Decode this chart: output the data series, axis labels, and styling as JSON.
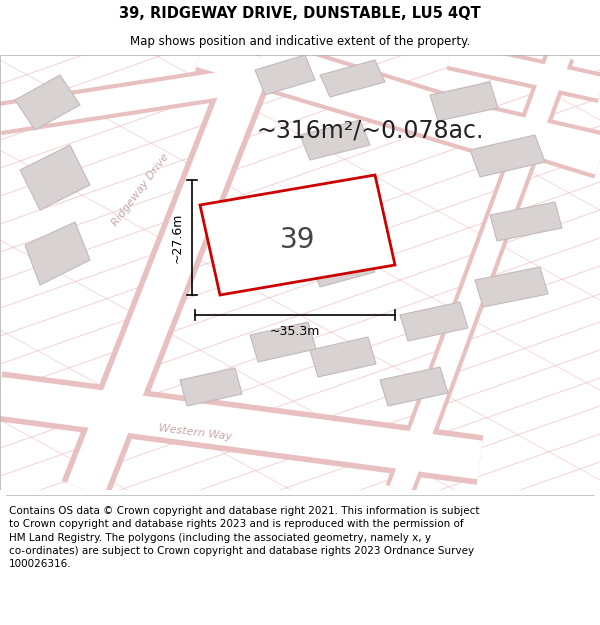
{
  "title": "39, RIDGEWAY DRIVE, DUNSTABLE, LU5 4QT",
  "subtitle": "Map shows position and indicative extent of the property.",
  "area_text": "~316m²/~0.078ac.",
  "house_number": "39",
  "dim_width": "~35.3m",
  "dim_height": "~27.6m",
  "footer_lines": [
    "Contains OS data © Crown copyright and database right 2021. This information is subject",
    "to Crown copyright and database rights 2023 and is reproduced with the permission of",
    "HM Land Registry. The polygons (including the associated geometry, namely x, y",
    "co-ordinates) are subject to Crown copyright and database rights 2023 Ordnance Survey",
    "100026316."
  ],
  "map_bg": "#f0eeee",
  "road_fill": "#ffffff",
  "road_outline": "#e8c0c0",
  "building_fill": "#d8d2d2",
  "building_outline": "#c4baba",
  "highlight_color": "#cc0000",
  "street_label_color": "#c8a8a8",
  "cadastral_color": "#e8b0b0",
  "title_fontsize": 10.5,
  "subtitle_fontsize": 8.5,
  "area_fontsize": 17,
  "number_fontsize": 20,
  "footer_fontsize": 7.5,
  "dim_fontsize": 9
}
